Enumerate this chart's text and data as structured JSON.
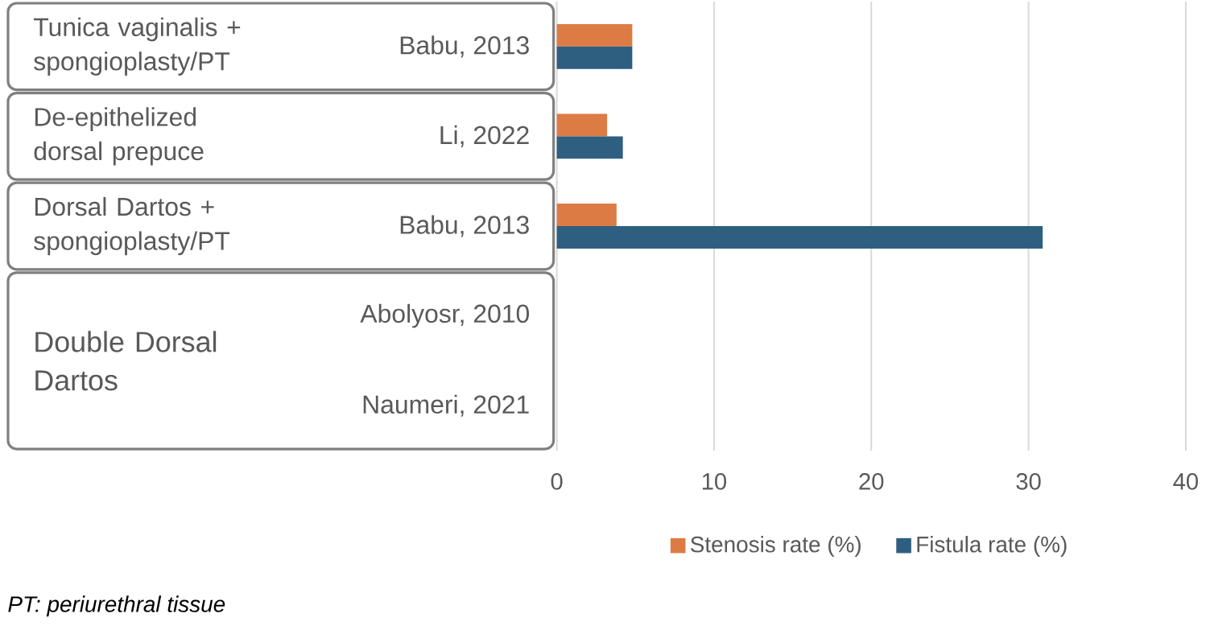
{
  "chart_data": {
    "type": "bar",
    "orientation": "horizontal",
    "categories": [
      "Babu, 2013",
      "Li, 2022",
      "Babu, 2013",
      "Abolyosr, 2010",
      "Naumeri, 2021"
    ],
    "series": [
      {
        "name": "Stenosis rate (%)",
        "color": "#dd7b44",
        "values": [
          4.8,
          3.2,
          3.8,
          null,
          null
        ]
      },
      {
        "name": "Fistula rate (%)",
        "color": "#2e5f80",
        "values": [
          4.8,
          4.2,
          30.9,
          null,
          null
        ]
      }
    ],
    "xlim": [
      0,
      40
    ],
    "xticks": [
      0,
      10,
      20,
      30,
      40
    ],
    "grid": "x",
    "legend": "bottom",
    "annotations": [
      "Tunica vaginalis + spongioplasty/PT",
      "De-epithelized dorsal prepuce",
      "Dorsal Dartos + spongioplasty/PT",
      "Double Dorsal Dartos",
      "PT: periurethral tissue"
    ]
  }
}
